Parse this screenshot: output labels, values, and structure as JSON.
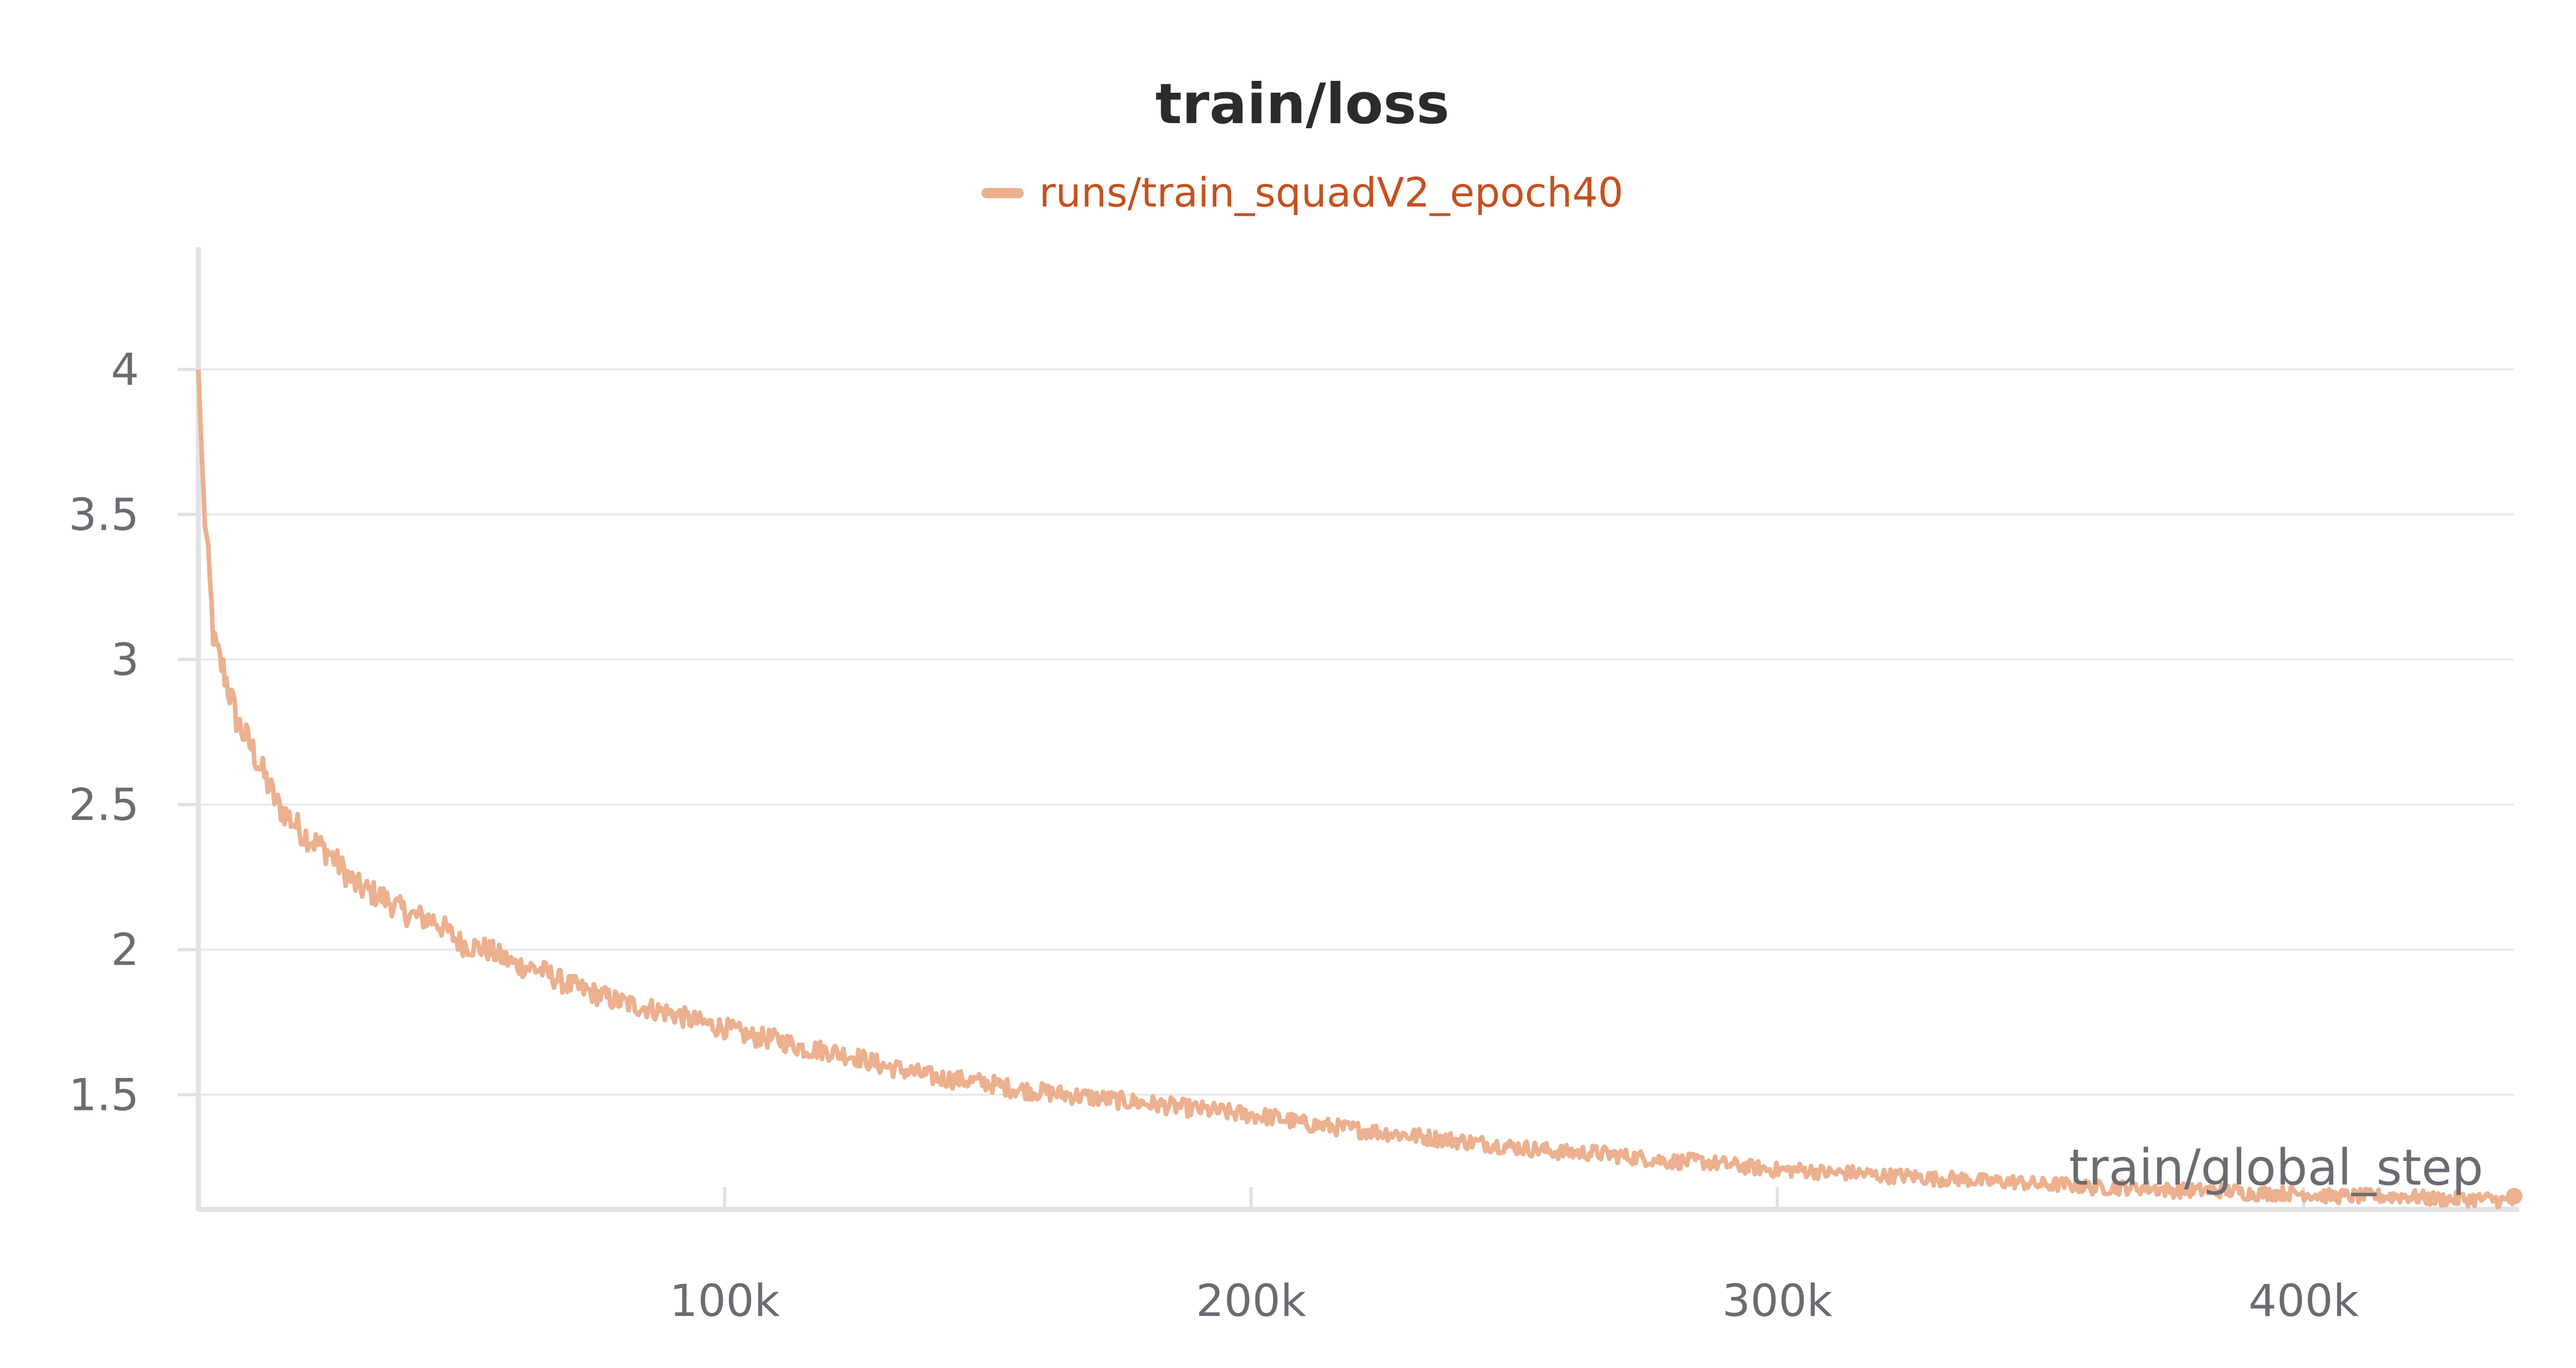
{
  "chart_data": {
    "type": "line",
    "title": "train/loss",
    "xlabel": "train/global_step",
    "ylabel": "",
    "xlim": [
      0,
      440000
    ],
    "ylim": [
      1.11,
      4.35
    ],
    "x_ticks": [
      100000,
      200000,
      300000,
      400000
    ],
    "x_tick_labels": [
      "100k",
      "200k",
      "300k",
      "400k"
    ],
    "y_ticks": [
      1.5,
      2,
      2.5,
      3,
      3.5,
      4
    ],
    "y_tick_labels": [
      "1.5",
      "2",
      "2.5",
      "3",
      "3.5",
      "4"
    ],
    "grid": true,
    "legend_position": "top-center",
    "series": [
      {
        "name": "runs/train_squadV2_epoch40",
        "color": "#ecb08f",
        "x": [
          0,
          1000,
          2000,
          3000,
          5000,
          7500,
          10000,
          15000,
          20000,
          25000,
          30000,
          35000,
          40000,
          45000,
          50000,
          55000,
          60000,
          65000,
          70000,
          75000,
          80000,
          85000,
          90000,
          95000,
          100000,
          105000,
          110000,
          115000,
          120000,
          125000,
          130000,
          135000,
          140000,
          145000,
          150000,
          155000,
          160000,
          165000,
          170000,
          175000,
          180000,
          185000,
          190000,
          195000,
          200000,
          205000,
          210000,
          215000,
          220000,
          225000,
          230000,
          235000,
          240000,
          245000,
          250000,
          255000,
          260000,
          265000,
          270000,
          275000,
          280000,
          285000,
          290000,
          295000,
          300000,
          305000,
          310000,
          315000,
          320000,
          325000,
          330000,
          335000,
          340000,
          345000,
          350000,
          355000,
          360000,
          365000,
          370000,
          375000,
          380000,
          385000,
          390000,
          395000,
          400000,
          405000,
          410000,
          415000,
          420000,
          425000,
          430000,
          435000,
          440000
        ],
        "y": [
          4.0,
          3.55,
          3.3,
          3.05,
          2.95,
          2.78,
          2.7,
          2.5,
          2.4,
          2.33,
          2.22,
          2.18,
          2.12,
          2.1,
          2.02,
          2.0,
          1.95,
          1.93,
          1.88,
          1.85,
          1.82,
          1.8,
          1.78,
          1.75,
          1.73,
          1.7,
          1.69,
          1.66,
          1.65,
          1.63,
          1.6,
          1.58,
          1.56,
          1.55,
          1.54,
          1.52,
          1.51,
          1.5,
          1.49,
          1.48,
          1.47,
          1.46,
          1.45,
          1.44,
          1.43,
          1.42,
          1.4,
          1.39,
          1.38,
          1.37,
          1.36,
          1.35,
          1.34,
          1.33,
          1.32,
          1.31,
          1.3,
          1.3,
          1.29,
          1.28,
          1.27,
          1.27,
          1.26,
          1.25,
          1.24,
          1.24,
          1.23,
          1.23,
          1.22,
          1.22,
          1.21,
          1.21,
          1.2,
          1.2,
          1.19,
          1.19,
          1.18,
          1.18,
          1.18,
          1.17,
          1.17,
          1.17,
          1.16,
          1.16,
          1.16,
          1.15,
          1.15,
          1.15,
          1.15,
          1.14,
          1.14,
          1.14,
          1.13
        ]
      }
    ]
  }
}
